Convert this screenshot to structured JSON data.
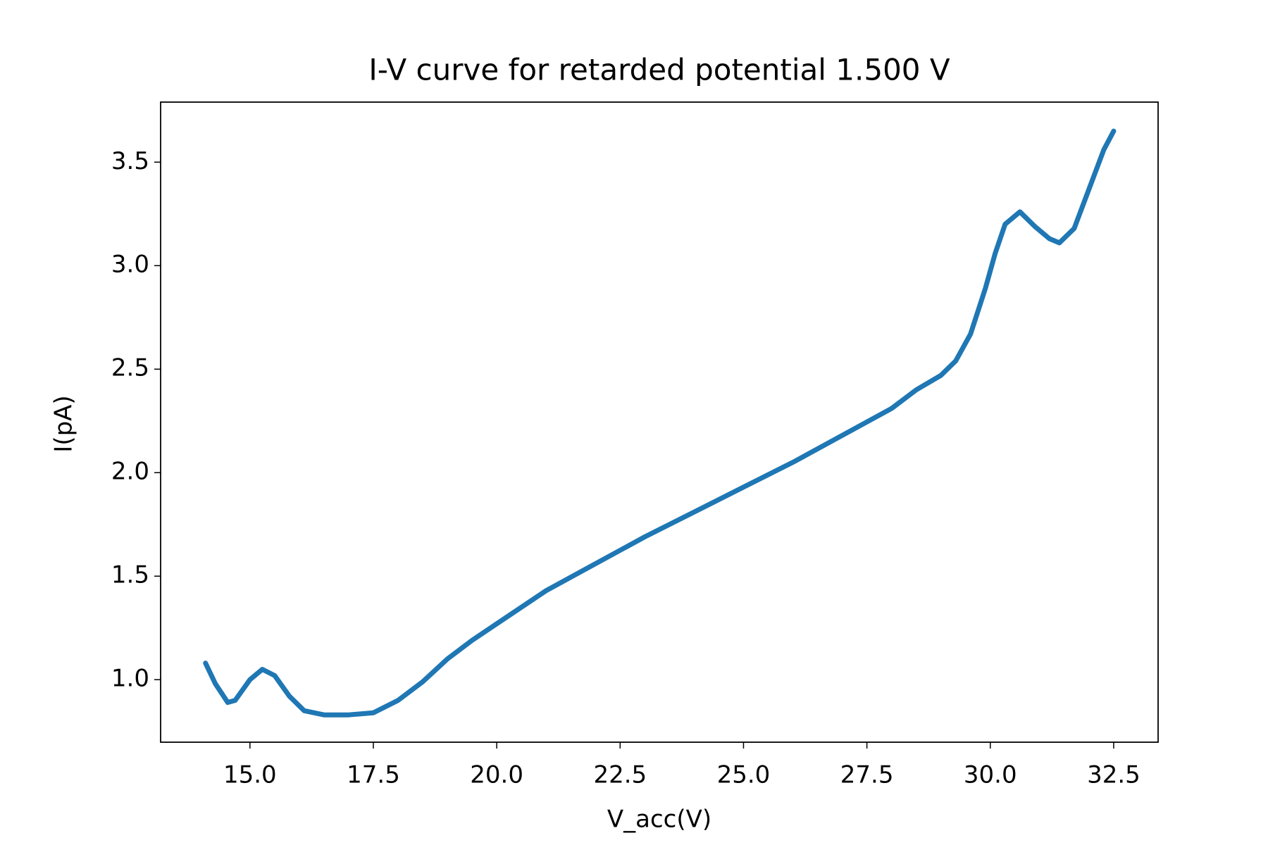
{
  "chart_data": {
    "type": "line",
    "title": "I-V curve for retarded potential 1.500 V",
    "x_label": "V_acc(V)",
    "y_label": "I(pA)",
    "xlim": [
      13.19,
      33.4
    ],
    "ylim": [
      0.698,
      3.79
    ],
    "xticks": [
      {
        "value": 15,
        "label": "15.0"
      },
      17.5,
      {
        "value": 20,
        "label": "20.0"
      },
      22.5,
      {
        "value": 25,
        "label": "25.0"
      },
      27.5,
      {
        "value": 30,
        "label": "30.0"
      },
      32.5
    ],
    "yticks": [
      {
        "value": 1,
        "label": "1.0"
      },
      1.5,
      {
        "value": 2,
        "label": "2.0"
      },
      2.5,
      {
        "value": 3,
        "label": "3.0"
      },
      3.5
    ],
    "grid": false,
    "series": [
      {
        "name": "I-V",
        "color": "#1f77b4",
        "x": [
          14.1,
          14.3,
          14.55,
          14.7,
          15.0,
          15.25,
          15.5,
          15.8,
          16.1,
          16.5,
          17.0,
          17.5,
          18.0,
          18.5,
          19.0,
          19.5,
          20.0,
          21.0,
          22.0,
          23.0,
          24.0,
          25.0,
          26.0,
          27.0,
          28.0,
          28.5,
          29.0,
          29.3,
          29.6,
          29.9,
          30.1,
          30.3,
          30.6,
          30.9,
          31.2,
          31.4,
          31.7,
          32.0,
          32.3,
          32.5
        ],
        "values": [
          1.08,
          0.98,
          0.89,
          0.9,
          1.0,
          1.05,
          1.02,
          0.92,
          0.85,
          0.83,
          0.83,
          0.84,
          0.9,
          0.99,
          1.1,
          1.19,
          1.27,
          1.43,
          1.56,
          1.69,
          1.81,
          1.93,
          2.05,
          2.18,
          2.31,
          2.4,
          2.47,
          2.54,
          2.67,
          2.89,
          3.06,
          3.2,
          3.26,
          3.19,
          3.13,
          3.11,
          3.18,
          3.37,
          3.56,
          3.65
        ]
      }
    ]
  }
}
